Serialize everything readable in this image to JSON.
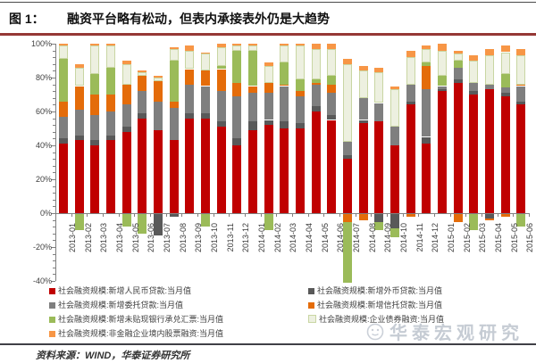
{
  "header": {
    "fig_label": "图 1：",
    "title": "融资平台略有松动，但表内承接表外仍是大趋势"
  },
  "footer": {
    "source": "资料来源：WIND，华泰证券研究所"
  },
  "watermark": {
    "text": "华泰宏观研究",
    "logo_icon": "huatai-logo-icon"
  },
  "colors": {
    "title_rule": "#953735",
    "axis": "#808080",
    "axis_text": "#404040",
    "watermark_text": "#c6ccd4"
  },
  "chart_data": {
    "type": "bar",
    "stacked": true,
    "grid": false,
    "legend_position": "bottom",
    "ylim": [
      -40,
      100
    ],
    "ytick_step": 20,
    "ytick_labels": [
      "100%",
      "80%",
      "60%",
      "40%",
      "20%",
      "0%",
      "-20%",
      "-40%"
    ],
    "categories": [
      "2013-01",
      "2013-02",
      "2013-03",
      "2013-04",
      "2013-05",
      "2013-06",
      "2013-07",
      "2013-08",
      "2013-09",
      "2013-10",
      "2013-11",
      "2013-12",
      "2014-01",
      "2014-02",
      "2014-03",
      "2014-04",
      "2014-05",
      "2014-06",
      "2014-07",
      "2014-08",
      "2014-09",
      "2014-10",
      "2014-11",
      "2014-12",
      "2015-01",
      "2015-02",
      "2015-03",
      "2015-04",
      "2015-05",
      "2015-06"
    ],
    "series": [
      {
        "name": "社会融资规模:新增人民币贷款:当月值",
        "color": "#c00000",
        "values": [
          41,
          43,
          40,
          43,
          48,
          56,
          49,
          43,
          56,
          56,
          51,
          40,
          49,
          52,
          50,
          50,
          60,
          55,
          32,
          53,
          54,
          40,
          64,
          41,
          72,
          77,
          70,
          73,
          69,
          64
        ]
      },
      {
        "name": "社会融资规模:新增外币贷款:当月值",
        "color": "#595959",
        "values": [
          3,
          3,
          3,
          3,
          3,
          3,
          -13,
          -2,
          3,
          3,
          3,
          4,
          5,
          3,
          4,
          3,
          3,
          3,
          2,
          2,
          -5,
          -9,
          2,
          4,
          1,
          2,
          2,
          -3,
          2,
          2
        ]
      },
      {
        "name": "社会融资规模:新增委托贷款:当月值",
        "color": "#7f7f7f",
        "values": [
          13,
          15,
          15,
          14,
          13,
          13,
          17,
          19,
          17,
          16,
          18,
          25,
          17,
          16,
          21,
          16,
          13,
          13,
          8,
          13,
          11,
          11,
          10,
          28,
          2,
          7,
          5,
          3,
          3,
          9
        ]
      },
      {
        "name": "社会融资规模:新增信托贷款:当月值",
        "color": "#e46c0a",
        "values": [
          9,
          14,
          12,
          10,
          12,
          9,
          12,
          4,
          9,
          9,
          13,
          8,
          4,
          6,
          1,
          3,
          1,
          5,
          -5,
          -4,
          0,
          0,
          -2,
          14,
          0,
          -5,
          0,
          -1,
          -2,
          1
        ]
      },
      {
        "name": "社会融资规模:新增未贴现银行承兑汇票:当月值",
        "color": "#9bbb59",
        "values": [
          25,
          -10,
          12,
          16,
          -8,
          -12,
          0,
          24,
          0,
          -8,
          2,
          19,
          21,
          -10,
          13,
          7,
          2,
          5,
          -36,
          0,
          -5,
          -5,
          0,
          2,
          6,
          4,
          -10,
          0,
          8,
          -8
        ]
      },
      {
        "name": "社会融资规模:企业债券融资:当月值",
        "color": "#edf0e0",
        "values": [
          8,
          11,
          17,
          13,
          12,
          2,
          2,
          7,
          11,
          10,
          11,
          3,
          3,
          10,
          10,
          20,
          18,
          16,
          46,
          16,
          18,
          22,
          16,
          8,
          15,
          4,
          13,
          17,
          13,
          17
        ]
      },
      {
        "name": "社会融资规模:非金融企业境内股票融资:当月值",
        "color": "#f79646",
        "values": [
          1,
          2,
          1,
          1,
          2,
          1,
          1,
          1,
          3,
          1,
          2,
          1,
          1,
          2,
          1,
          1,
          3,
          3,
          3,
          3,
          3,
          2,
          4,
          2,
          4,
          2,
          3,
          4,
          4,
          4
        ]
      }
    ],
    "legend_columns": [
      [
        0,
        2,
        4,
        6
      ],
      [
        1,
        3,
        5
      ]
    ]
  }
}
